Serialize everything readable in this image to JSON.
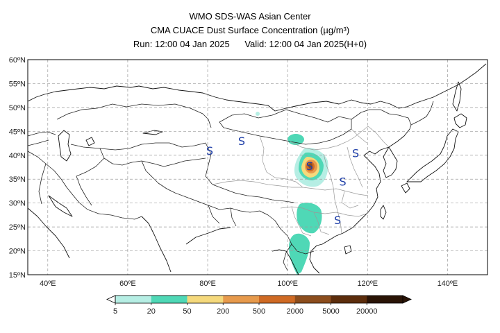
{
  "header": {
    "line1": "WMO SDS-WAS Asian Center",
    "line2_prefix": "CMA CUACE Dust Surface Concentration ",
    "line2_unit": "(µg/m³)",
    "line3_run": "Run: 12:00 04 Jan 2025",
    "line3_valid": "Valid: 12:00 04 Jan 2025(H+0)"
  },
  "map": {
    "lon_range": [
      35,
      150
    ],
    "lat_range": [
      15,
      60
    ],
    "lat_labels": [
      "60ºN",
      "55ºN",
      "50ºN",
      "45ºN",
      "40ºN",
      "35ºN",
      "30ºN",
      "25ºN",
      "20ºN",
      "15ºN"
    ],
    "lon_labels": [
      "40ºE",
      "60ºE",
      "80ºE",
      "100ºE",
      "120ºE",
      "140ºE"
    ],
    "storm_symbol": "S",
    "storm_markers": [
      {
        "lon": 80.5,
        "lat": 41.0
      },
      {
        "lon": 88.5,
        "lat": 43.0
      },
      {
        "lon": 105.5,
        "lat": 37.8
      },
      {
        "lon": 117.0,
        "lat": 40.5
      },
      {
        "lon": 113.8,
        "lat": 34.5
      },
      {
        "lon": 112.5,
        "lat": 26.5
      }
    ],
    "grid": true
  },
  "colorbar": {
    "labels": [
      "5",
      "20",
      "50",
      "200",
      "500",
      "2000",
      "5000",
      "20000"
    ],
    "colors": [
      "#b6eee4",
      "#4fd8b6",
      "#f5d97c",
      "#e79a4c",
      "#cf6a24",
      "#8c4d1d",
      "#5c2d0c",
      "#2a1406"
    ],
    "extend": "both"
  }
}
